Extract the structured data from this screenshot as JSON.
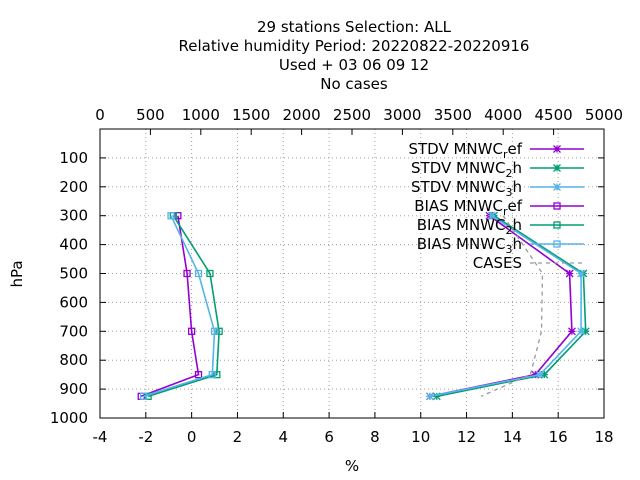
{
  "chart_data": {
    "type": "line",
    "title_lines": [
      "29 stations Selection: ALL",
      "Relative humidity  Period: 20220822-20220916",
      "Used   + 03 06 09 12",
      "No cases"
    ],
    "xlabel": "%",
    "ylabel": "hPa",
    "xlim": [
      -4,
      18
    ],
    "x_ticks": [
      "-4",
      "-2",
      "0",
      "2",
      "4",
      "6",
      "8",
      "10",
      "12",
      "14",
      "16",
      "18"
    ],
    "ylim": [
      1000,
      0
    ],
    "y_ticks": [
      "100",
      "200",
      "300",
      "400",
      "500",
      "600",
      "700",
      "800",
      "900",
      "1000"
    ],
    "x2lim": [
      0,
      5000
    ],
    "x2_ticks": [
      "0",
      "500",
      "1000",
      "1500",
      "2000",
      "2500",
      "3000",
      "3500",
      "4000",
      "4500",
      "5000"
    ],
    "grid": true,
    "legend_position": "top-right",
    "series": [
      {
        "label_main": "STDV MNWC",
        "label_sub": "r",
        "label_tail": "ef",
        "color": "#9400d3",
        "marker": "star",
        "points": [
          [
            13.0,
            300
          ],
          [
            16.5,
            500
          ],
          [
            16.6,
            700
          ],
          [
            15.0,
            850
          ],
          [
            10.4,
            925
          ]
        ]
      },
      {
        "label_main": "STDV MNWC",
        "label_sub": "2",
        "label_tail": "h",
        "color": "#009e73",
        "marker": "star",
        "points": [
          [
            13.2,
            300
          ],
          [
            17.1,
            500
          ],
          [
            17.2,
            700
          ],
          [
            15.4,
            850
          ],
          [
            10.7,
            925
          ]
        ]
      },
      {
        "label_main": "STDV MNWC",
        "label_sub": "3",
        "label_tail": "h",
        "color": "#56b4e9",
        "marker": "star",
        "points": [
          [
            13.1,
            300
          ],
          [
            17.0,
            500
          ],
          [
            17.0,
            700
          ],
          [
            15.2,
            850
          ],
          [
            10.4,
            925
          ]
        ]
      },
      {
        "label_main": "BIAS MNWC",
        "label_sub": "r",
        "label_tail": "ef",
        "color": "#9400d3",
        "marker": "square",
        "points": [
          [
            -0.6,
            300
          ],
          [
            -0.2,
            500
          ],
          [
            0.0,
            700
          ],
          [
            0.3,
            850
          ],
          [
            -2.2,
            925
          ]
        ]
      },
      {
        "label_main": "BIAS MNWC",
        "label_sub": "2",
        "label_tail": "h",
        "color": "#009e73",
        "marker": "square",
        "points": [
          [
            -0.8,
            300
          ],
          [
            0.8,
            500
          ],
          [
            1.2,
            700
          ],
          [
            1.1,
            850
          ],
          [
            -1.9,
            925
          ]
        ]
      },
      {
        "label_main": "BIAS MNWC",
        "label_sub": "3",
        "label_tail": "h",
        "color": "#56b4e9",
        "marker": "square",
        "points": [
          [
            -0.9,
            300
          ],
          [
            0.3,
            500
          ],
          [
            1.0,
            700
          ],
          [
            0.9,
            850
          ],
          [
            -2.1,
            925
          ]
        ]
      },
      {
        "label_main": "CASES",
        "label_sub": "",
        "label_tail": "",
        "color": "#999999",
        "marker": "none",
        "dashed": true,
        "points": [
          [
            4000,
            300
          ],
          [
            4390,
            500
          ],
          [
            4380,
            700
          ],
          [
            4270,
            850
          ],
          [
            3780,
            925
          ]
        ],
        "axis": "x2"
      }
    ]
  }
}
